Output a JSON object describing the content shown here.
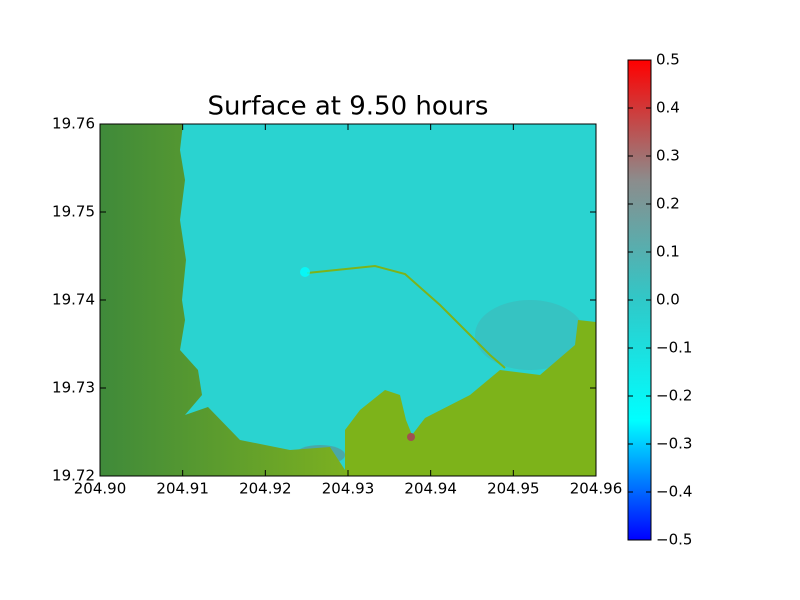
{
  "chart_data": {
    "type": "image",
    "title": "Surface at 9.50 hours",
    "xlim": [
      204.9,
      204.96
    ],
    "xticks": [
      {
        "value": 204.9,
        "label": "204.90"
      },
      {
        "value": 204.91,
        "label": "204.91"
      },
      {
        "value": 204.92,
        "label": "204.92"
      },
      {
        "value": 204.93,
        "label": "204.93"
      },
      {
        "value": 204.94,
        "label": "204.94"
      },
      {
        "value": 204.95,
        "label": "204.95"
      },
      {
        "value": 204.96,
        "label": "204.96"
      }
    ],
    "ylim": [
      19.72,
      19.76
    ],
    "yticks": [
      19.72,
      19.73,
      19.74,
      19.75,
      19.76
    ],
    "colorbar": {
      "clim": [
        -0.5,
        0.5
      ],
      "colors": [
        "#0000ff",
        "#00ffff",
        "#30c8c8",
        "#8c8c8c",
        "#ff0000"
      ],
      "ticks": [
        {
          "value": -0.5,
          "label": "−0.5"
        },
        {
          "value": -0.4,
          "label": "−0.4"
        },
        {
          "value": -0.3,
          "label": "−0.3"
        },
        {
          "value": -0.2,
          "label": "−0.2"
        },
        {
          "value": -0.1,
          "label": "−0.1"
        },
        {
          "value": 0,
          "label": "0.0"
        },
        0.1,
        0.2,
        0.3,
        0.4,
        0.5
      ]
    }
  }
}
